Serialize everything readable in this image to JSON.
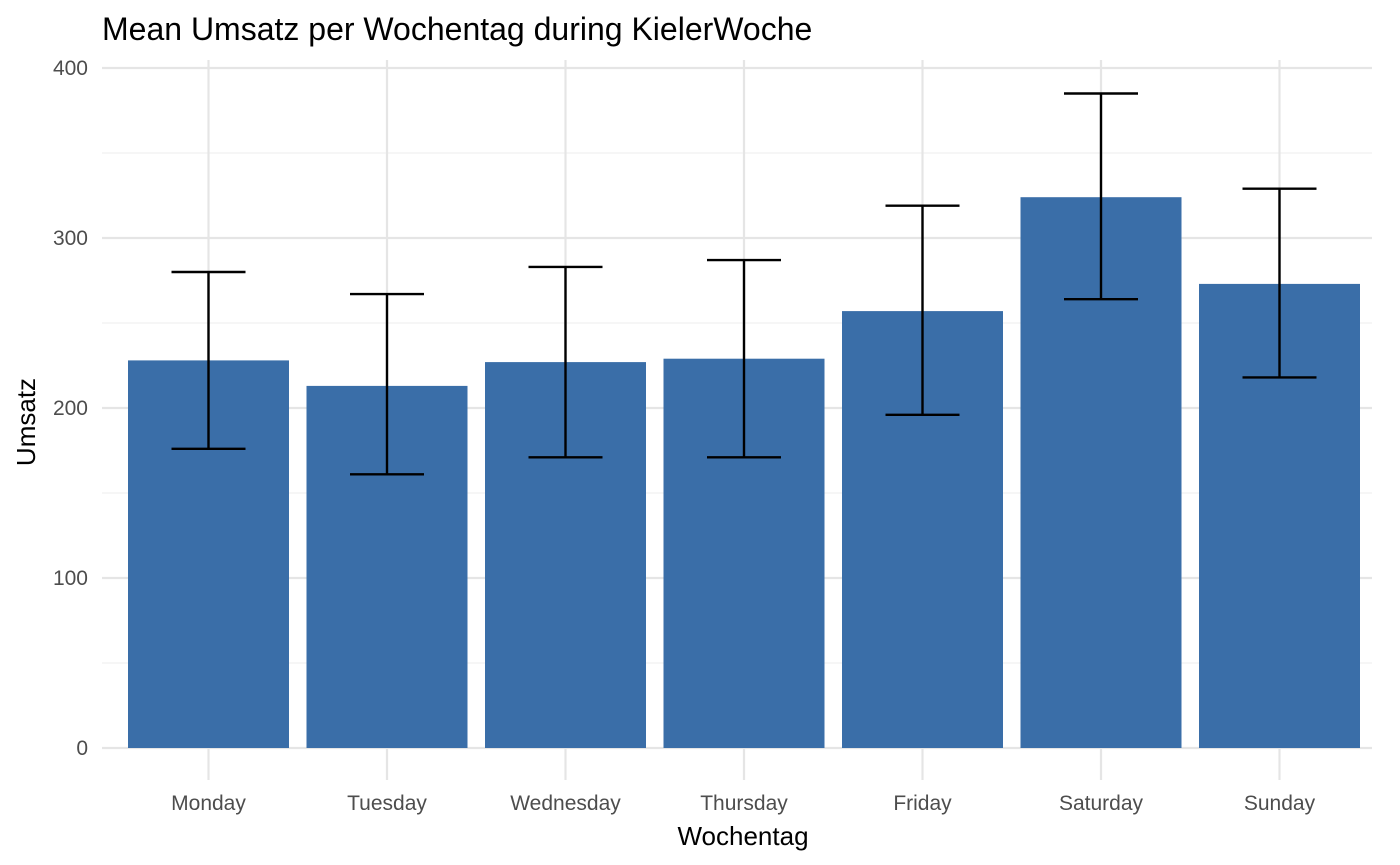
{
  "chart_data": {
    "type": "bar",
    "title": "Mean Umsatz per Wochentag during KielerWoche",
    "xlabel": "Wochentag",
    "ylabel": "Umsatz",
    "categories": [
      "Monday",
      "Tuesday",
      "Wednesday",
      "Thursday",
      "Friday",
      "Saturday",
      "Sunday"
    ],
    "values": [
      228,
      213,
      227,
      229,
      257,
      324,
      273
    ],
    "error_low": [
      176,
      161,
      171,
      171,
      196,
      264,
      218
    ],
    "error_high": [
      280,
      267,
      283,
      287,
      319,
      385,
      329
    ],
    "ylim": [
      0,
      400
    ],
    "yticks": [
      0,
      100,
      200,
      300,
      400
    ],
    "grid": true,
    "colors": {
      "bar": "#3A6EA8",
      "error": "#000000",
      "grid_major": "#E5E5E5",
      "grid_minor": "#F1F1F1",
      "tick_text": "#4D4D4D"
    }
  }
}
